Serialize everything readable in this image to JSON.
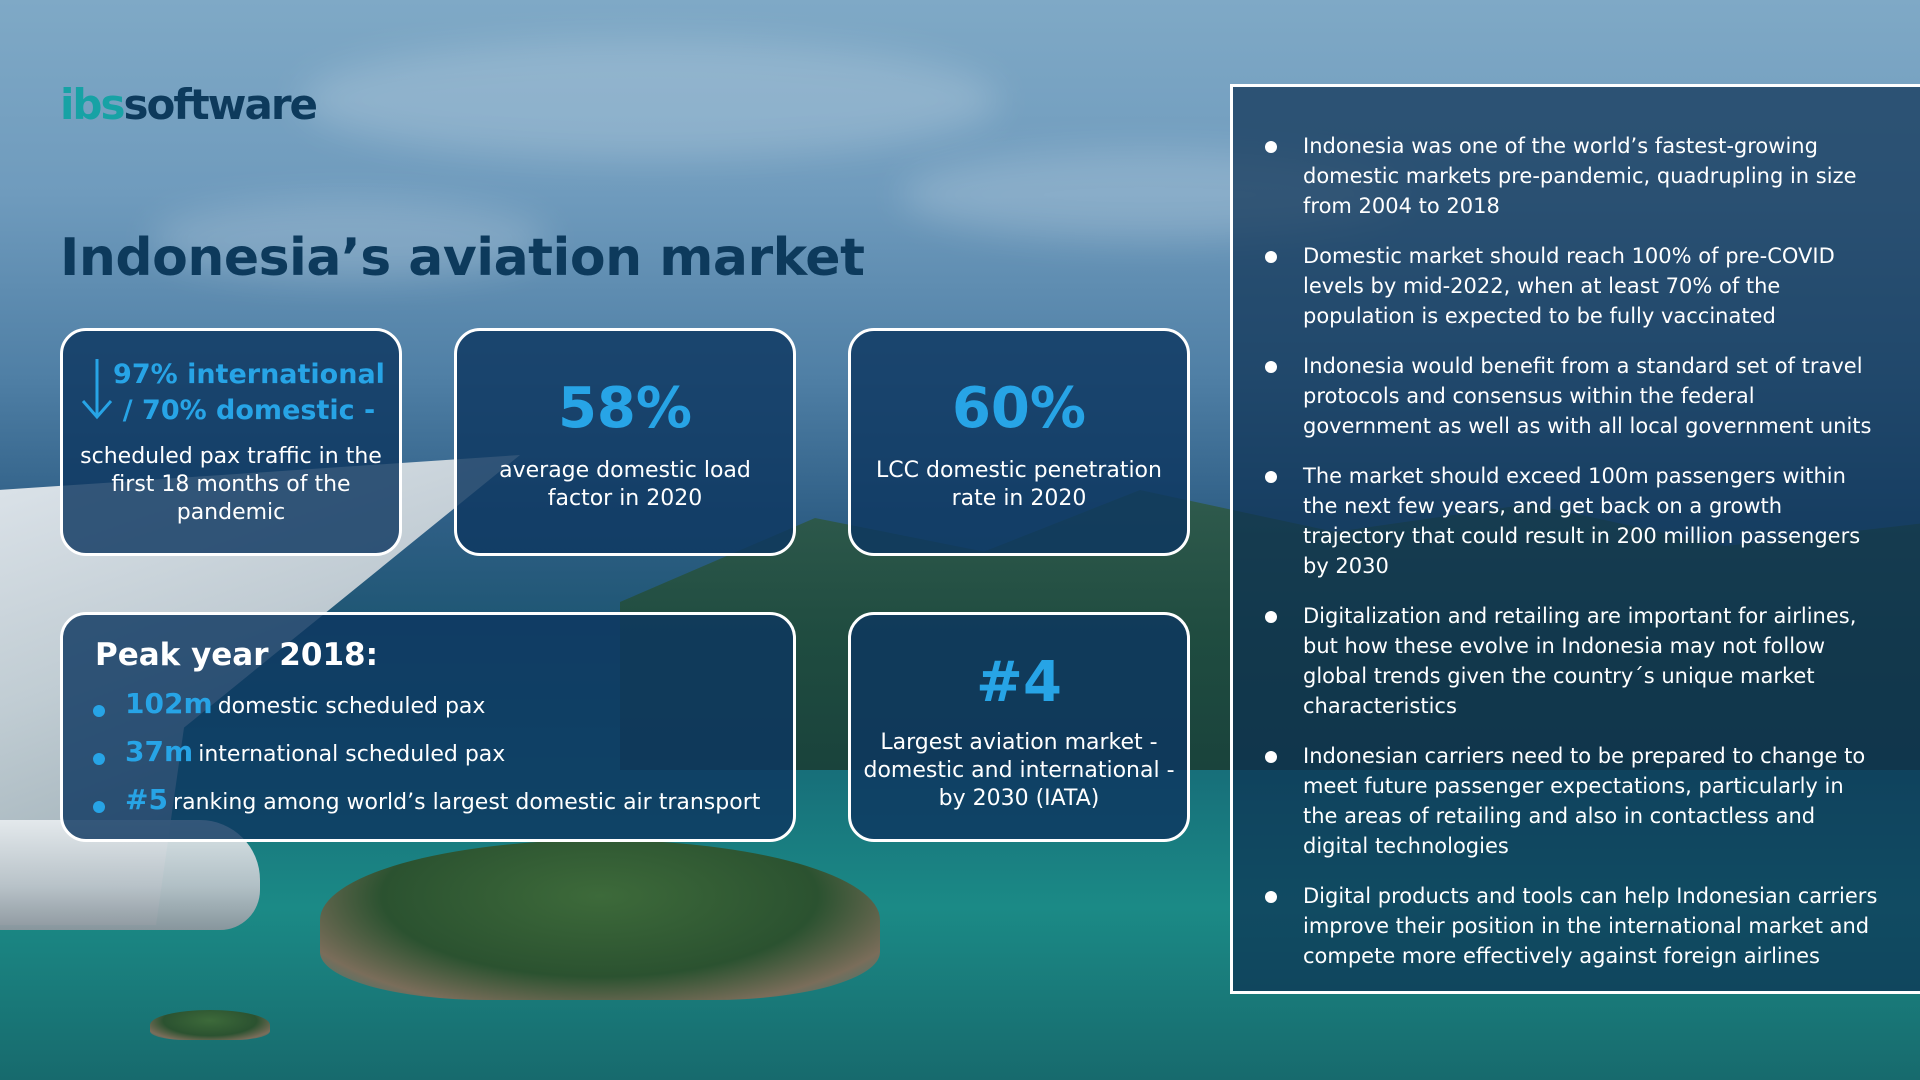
{
  "logo": {
    "part1": "ibs",
    "part2": "software"
  },
  "title": "Indonesia’s aviation market",
  "cards": {
    "intl": {
      "headline": "97% international / 70% domestic -",
      "description": "scheduled pax traffic in the first 18 months of the pandemic"
    },
    "load_factor": {
      "value": "58%",
      "description": "average domestic load factor in 2020"
    },
    "lcc": {
      "value": "60%",
      "description": "LCC domestic penetration rate in 2020"
    },
    "peak": {
      "title": "Peak year 2018:",
      "items": [
        {
          "number": "102m",
          "text": "domestic scheduled pax"
        },
        {
          "number": "37m",
          "text": "international scheduled pax"
        },
        {
          "number": "#5",
          "text": "ranking among world’s largest domestic air transport"
        }
      ]
    },
    "ranking": {
      "value": "#4",
      "description": "Largest aviation market - domestic and international - by 2030 (IATA)"
    }
  },
  "bullets": [
    "Indonesia was one of the world’s fastest-growing domestic markets pre-pandemic, quadrupling in size from 2004 to 2018",
    "Domestic market should reach 100% of pre-COVID levels by mid-2022, when at least 70% of the population is expected to be fully vaccinated",
    "Indonesia would benefit from a standard set of travel protocols and consensus within the federal government as well as with all local government units",
    "The market should exceed 100m passengers within the next few years, and get back on a growth trajectory that could result in 200 million passengers by 2030",
    "Digitalization and retailing are important for airlines, but how these evolve in Indonesia may not follow global trends given the country´s unique market characteristics",
    "Indonesian carriers need to be prepared to change to meet future passenger expectations, particularly in the areas of retailing and also in contactless and digital technologies",
    "Digital products and tools can help Indonesian carriers improve their position in the international market and compete more effectively against foreign airlines"
  ],
  "colors": {
    "accent_blue": "#27a4e6",
    "title_navy": "#0d3a5c",
    "logo_teal": "#17a2a5",
    "card_fill": "#0d3760"
  }
}
